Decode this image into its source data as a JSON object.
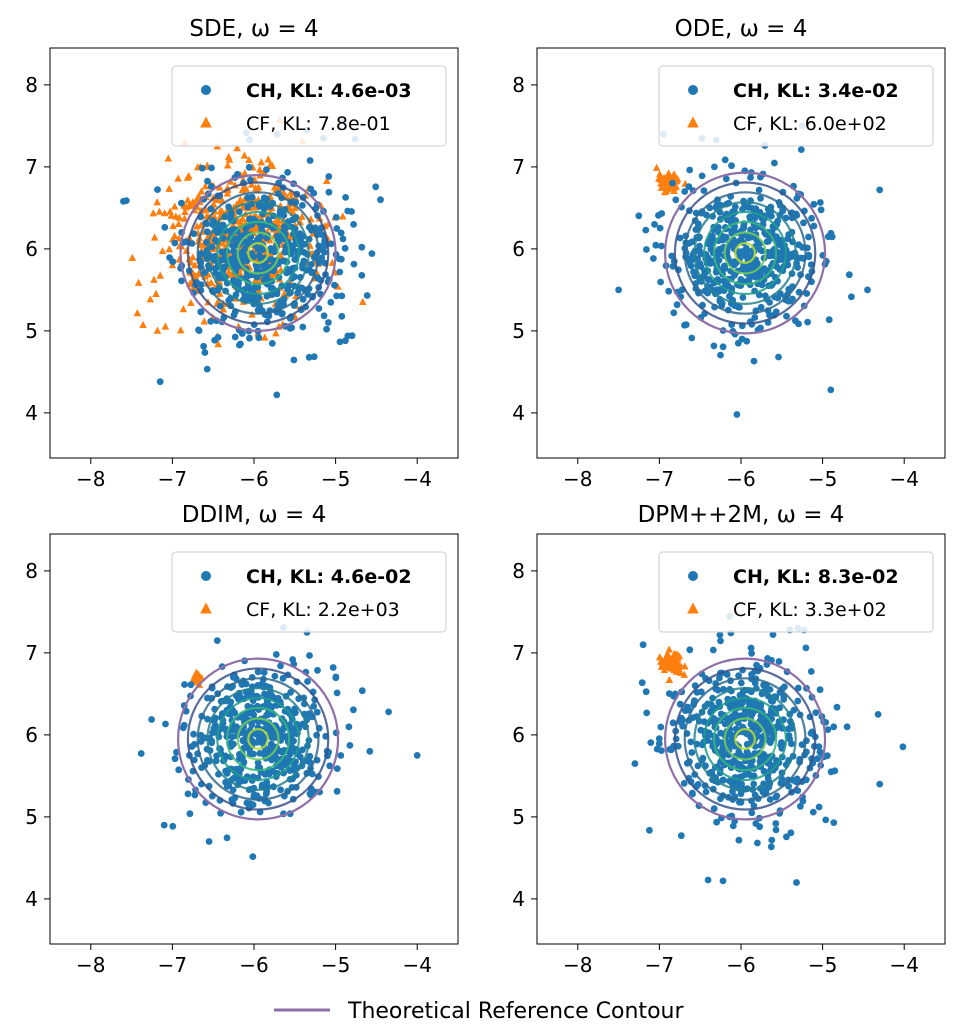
{
  "legend_footer": {
    "label": "Theoretical Reference Contour",
    "color": "#8e6fa8"
  },
  "colors": {
    "ch": "#1f77b4",
    "cf": "#ff7f0e",
    "reference": "#8e6fa8",
    "density_levels": [
      "#3b528b",
      "#31688e",
      "#26828e",
      "#1f9e89",
      "#35b779",
      "#6ece58",
      "#b5de2b"
    ]
  },
  "chart_data": [
    {
      "type": "scatter",
      "title": "SDE, ω = 4",
      "xlim": [
        -8.5,
        -3.5
      ],
      "ylim": [
        3.45,
        8.45
      ],
      "xticks": [
        -8,
        -7,
        -6,
        -5,
        -4
      ],
      "xtick_labels": [
        "−8",
        "−7",
        "−6",
        "−5",
        "−4"
      ],
      "yticks": [
        4,
        5,
        6,
        7,
        8
      ],
      "ytick_labels": [
        "4",
        "5",
        "6",
        "7",
        "8"
      ],
      "density_center": [
        -5.95,
        5.95
      ],
      "density_contour_radii": [
        0.12,
        0.25,
        0.38,
        0.5,
        0.62,
        0.74,
        0.86
      ],
      "reference_contour": {
        "center": [
          -5.95,
          5.95
        ],
        "radius": 0.95
      },
      "legend": [
        {
          "name": "CH",
          "label": "CH, KL: 4.6e-03",
          "marker": "circle",
          "bold": true
        },
        {
          "name": "CF",
          "label": "CF, KL: 7.8e-01",
          "marker": "triangle",
          "bold": false
        }
      ],
      "series": [
        {
          "name": "CH",
          "center": [
            -5.9,
            5.9
          ],
          "spread": 0.48,
          "count": 520,
          "seed": 11,
          "outliers": [
            [
              -7.15,
              4.38
            ],
            [
              -5.72,
              4.22
            ],
            [
              -4.88,
              4.88
            ],
            [
              -7.6,
              6.58
            ],
            [
              -4.45,
              6.6
            ],
            [
              -5.35,
              7.45
            ],
            [
              -5.15,
              7.35
            ]
          ]
        },
        {
          "name": "CF",
          "center": [
            -6.2,
            6.08
          ],
          "spread": 0.45,
          "count": 520,
          "seed": 23,
          "outliers": [
            [
              -7.2,
              5.45
            ],
            [
              -7.05,
              7.1
            ],
            [
              -6.45,
              7.25
            ],
            [
              -6.85,
              7.3
            ],
            [
              -7.0,
              5.8
            ]
          ]
        }
      ]
    },
    {
      "type": "scatter",
      "title": "ODE, ω = 4",
      "xlim": [
        -8.5,
        -3.5
      ],
      "ylim": [
        3.45,
        8.45
      ],
      "xticks": [
        -8,
        -7,
        -6,
        -5,
        -4
      ],
      "xtick_labels": [
        "−8",
        "−7",
        "−6",
        "−5",
        "−4"
      ],
      "yticks": [
        4,
        5,
        6,
        7,
        8
      ],
      "ytick_labels": [
        "4",
        "5",
        "6",
        "7",
        "8"
      ],
      "density_center": [
        -5.95,
        5.95
      ],
      "density_contour_radii": [
        0.12,
        0.25,
        0.38,
        0.5,
        0.62,
        0.74,
        0.86
      ],
      "reference_contour": {
        "center": [
          -5.95,
          5.95
        ],
        "radius": 0.98
      },
      "legend": [
        {
          "name": "CH",
          "label": "CH, KL: 3.4e-02",
          "marker": "circle",
          "bold": true
        },
        {
          "name": "CF",
          "label": "CF, KL: 6.0e+02",
          "marker": "triangle",
          "bold": false
        }
      ],
      "series": [
        {
          "name": "CH",
          "center": [
            -5.95,
            5.95
          ],
          "spread": 0.45,
          "count": 520,
          "seed": 37,
          "outliers": [
            [
              -6.05,
              3.98
            ],
            [
              -4.3,
              6.72
            ],
            [
              -4.45,
              5.5
            ],
            [
              -7.5,
              5.5
            ],
            [
              -6.95,
              7.4
            ],
            [
              -4.9,
              4.28
            ],
            [
              -5.25,
              7.5
            ]
          ]
        },
        {
          "name": "CF",
          "center": [
            -6.88,
            6.82
          ],
          "spread": 0.06,
          "count": 60,
          "seed": 41,
          "outliers": []
        }
      ]
    },
    {
      "type": "scatter",
      "title": "DDIM, ω = 4",
      "xlim": [
        -8.5,
        -3.5
      ],
      "ylim": [
        3.45,
        8.45
      ],
      "xticks": [
        -8,
        -7,
        -6,
        -5,
        -4
      ],
      "xtick_labels": [
        "−8",
        "−7",
        "−6",
        "−5",
        "−4"
      ],
      "yticks": [
        4,
        5,
        6,
        7,
        8
      ],
      "ytick_labels": [
        "4",
        "5",
        "6",
        "7",
        "8"
      ],
      "density_center": [
        -5.95,
        5.95
      ],
      "density_contour_radii": [
        0.12,
        0.25,
        0.38,
        0.5,
        0.62,
        0.74,
        0.86
      ],
      "reference_contour": {
        "center": [
          -5.95,
          5.95
        ],
        "radius": 0.98
      },
      "legend": [
        {
          "name": "CH",
          "label": "CH, KL: 4.6e-02",
          "marker": "circle",
          "bold": true
        },
        {
          "name": "CF",
          "label": "CF, KL: 2.2e+03",
          "marker": "triangle",
          "bold": false
        }
      ],
      "series": [
        {
          "name": "CH",
          "center": [
            -5.95,
            5.95
          ],
          "spread": 0.42,
          "count": 500,
          "seed": 53,
          "outliers": [
            [
              -4.0,
              5.75
            ],
            [
              -4.35,
              6.28
            ],
            [
              -7.1,
              4.9
            ],
            [
              -5.35,
              7.25
            ],
            [
              -6.45,
              7.15
            ],
            [
              -6.55,
              4.7
            ]
          ]
        },
        {
          "name": "CF",
          "center": [
            -6.68,
            6.7
          ],
          "spread": 0.035,
          "count": 16,
          "seed": 59,
          "outliers": []
        }
      ]
    },
    {
      "type": "scatter",
      "title": "DPM++2M, ω = 4",
      "xlim": [
        -8.5,
        -3.5
      ],
      "ylim": [
        3.45,
        8.45
      ],
      "xticks": [
        -8,
        -7,
        -6,
        -5,
        -4
      ],
      "xtick_labels": [
        "−8",
        "−7",
        "−6",
        "−5",
        "−4"
      ],
      "yticks": [
        4,
        5,
        6,
        7,
        8
      ],
      "ytick_labels": [
        "4",
        "5",
        "6",
        "7",
        "8"
      ],
      "density_center": [
        -5.95,
        5.95
      ],
      "density_contour_radii": [
        0.12,
        0.25,
        0.38,
        0.5,
        0.62,
        0.74,
        0.86
      ],
      "reference_contour": {
        "center": [
          -5.95,
          5.95
        ],
        "radius": 0.98
      },
      "legend": [
        {
          "name": "CH",
          "label": "CH, KL: 8.3e-02",
          "marker": "circle",
          "bold": true
        },
        {
          "name": "CF",
          "label": "CF, KL: 3.3e+02",
          "marker": "triangle",
          "bold": false
        }
      ],
      "series": [
        {
          "name": "CH",
          "center": [
            -5.95,
            5.95
          ],
          "spread": 0.47,
          "count": 540,
          "seed": 67,
          "outliers": [
            [
              -5.32,
              4.2
            ],
            [
              -6.22,
              4.22
            ],
            [
              -4.3,
              5.4
            ],
            [
              -7.3,
              5.65
            ],
            [
              -7.2,
              7.1
            ],
            [
              -5.3,
              7.3
            ],
            [
              -4.32,
              6.25
            ]
          ]
        },
        {
          "name": "CF",
          "center": [
            -6.85,
            6.88
          ],
          "spread": 0.07,
          "count": 70,
          "seed": 71,
          "outliers": []
        }
      ]
    }
  ]
}
